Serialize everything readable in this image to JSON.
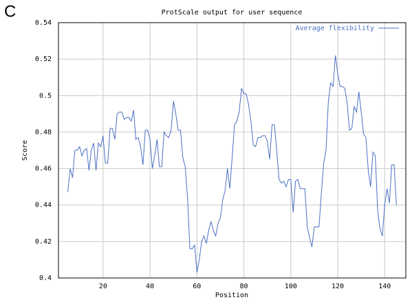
{
  "panel_label": "C",
  "chart_data": {
    "type": "line",
    "title": "ProtScale output for user sequence",
    "x_label": "Position",
    "y_label": "Score",
    "x": [
      5,
      6,
      7,
      8,
      9,
      10,
      11,
      12,
      13,
      14,
      15,
      16,
      17,
      18,
      19,
      20,
      21,
      22,
      23,
      24,
      25,
      26,
      27,
      28,
      29,
      30,
      31,
      32,
      33,
      34,
      35,
      36,
      37,
      38,
      39,
      40,
      41,
      42,
      43,
      44,
      45,
      46,
      47,
      48,
      49,
      50,
      51,
      52,
      53,
      54,
      55,
      56,
      57,
      58,
      59,
      60,
      61,
      62,
      63,
      64,
      65,
      66,
      67,
      68,
      69,
      70,
      71,
      72,
      73,
      74,
      75,
      76,
      77,
      78,
      79,
      80,
      81,
      82,
      83,
      84,
      85,
      86,
      87,
      88,
      89,
      90,
      91,
      92,
      93,
      94,
      95,
      96,
      97,
      98,
      99,
      100,
      101,
      102,
      103,
      104,
      105,
      106,
      107,
      108,
      109,
      110,
      111,
      112,
      113,
      114,
      115,
      116,
      117,
      118,
      119,
      120,
      121,
      122,
      123,
      124,
      125,
      126,
      127,
      128,
      129,
      130,
      131,
      132,
      133,
      134,
      135,
      136,
      137,
      138,
      139,
      140,
      141,
      142,
      143,
      144,
      145
    ],
    "series": [
      {
        "name": "Average flexibility",
        "color": "#4a6fc4",
        "values": [
          0.447,
          0.46,
          0.455,
          0.47,
          0.47,
          0.472,
          0.467,
          0.47,
          0.471,
          0.459,
          0.47,
          0.474,
          0.459,
          0.474,
          0.472,
          0.478,
          0.463,
          0.463,
          0.482,
          0.482,
          0.476,
          0.49,
          0.491,
          0.491,
          0.487,
          0.488,
          0.488,
          0.486,
          0.492,
          0.476,
          0.477,
          0.472,
          0.462,
          0.481,
          0.481,
          0.476,
          0.46,
          0.467,
          0.476,
          0.461,
          0.461,
          0.48,
          0.478,
          0.477,
          0.481,
          0.497,
          0.49,
          0.481,
          0.481,
          0.466,
          0.461,
          0.444,
          0.416,
          0.416,
          0.418,
          0.403,
          0.41,
          0.42,
          0.423,
          0.419,
          0.426,
          0.431,
          0.426,
          0.423,
          0.43,
          0.433,
          0.443,
          0.448,
          0.46,
          0.449,
          0.466,
          0.484,
          0.486,
          0.491,
          0.504,
          0.501,
          0.501,
          0.495,
          0.486,
          0.473,
          0.472,
          0.477,
          0.477,
          0.478,
          0.478,
          0.475,
          0.465,
          0.484,
          0.484,
          0.47,
          0.454,
          0.452,
          0.453,
          0.45,
          0.454,
          0.454,
          0.436,
          0.453,
          0.454,
          0.449,
          0.449,
          0.449,
          0.428,
          0.422,
          0.417,
          0.428,
          0.428,
          0.428,
          0.446,
          0.463,
          0.47,
          0.497,
          0.507,
          0.505,
          0.522,
          0.512,
          0.505,
          0.505,
          0.504,
          0.496,
          0.481,
          0.482,
          0.494,
          0.491,
          0.502,
          0.491,
          0.479,
          0.477,
          0.459,
          0.45,
          0.469,
          0.467,
          0.437,
          0.427,
          0.423,
          0.44,
          0.449,
          0.441,
          0.462,
          0.462,
          0.44
        ]
      }
    ],
    "xlim": [
      1,
      149
    ],
    "xticks": [
      20,
      40,
      60,
      80,
      100,
      120,
      140
    ],
    "ylim": [
      0.4,
      0.54
    ],
    "yticks": [
      0.4,
      0.42,
      0.44,
      0.46,
      0.48,
      0.5,
      0.52,
      0.54
    ],
    "grid": true,
    "legend": "upper right"
  }
}
